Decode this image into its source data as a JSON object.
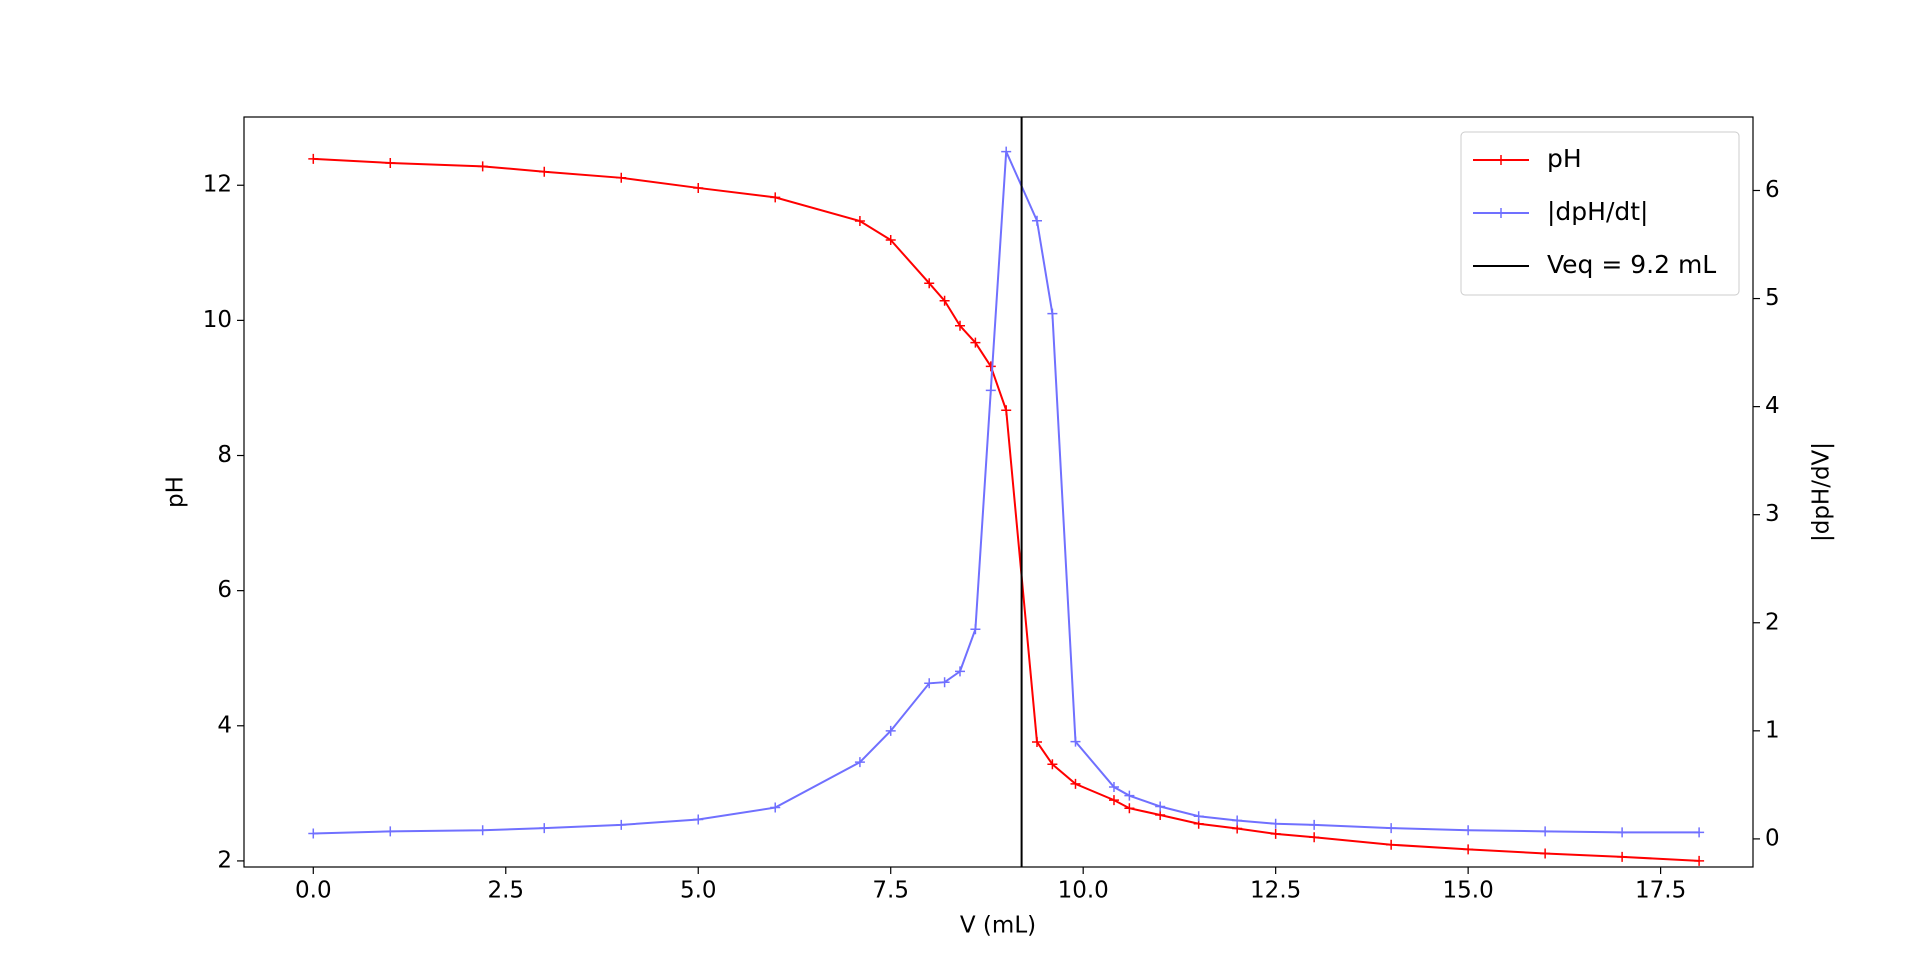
{
  "chart_data": {
    "type": "line",
    "x_label": "V (mL)",
    "y_label": "pH",
    "y2_label": "|dpH/dV|",
    "x": [
      0,
      1,
      2.2,
      3,
      4,
      5,
      6,
      7.1,
      7.5,
      8,
      8.2,
      8.4,
      8.6,
      8.8,
      9.0,
      9.4,
      9.6,
      9.9,
      10.4,
      10.6,
      11,
      11.5,
      12,
      12.5,
      13,
      14,
      15,
      16,
      17,
      18
    ],
    "series": [
      {
        "name": "pH",
        "color": "#ff0000",
        "axis": "y",
        "values": [
          12.39,
          12.33,
          12.28,
          12.2,
          12.11,
          11.96,
          11.82,
          11.47,
          11.19,
          10.55,
          10.29,
          9.92,
          9.67,
          9.32,
          8.67,
          3.76,
          3.43,
          3.14,
          2.9,
          2.78,
          2.68,
          2.55,
          2.48,
          2.4,
          2.35,
          2.24,
          2.17,
          2.11,
          2.06,
          2.0
        ]
      },
      {
        "name": "|dpH/dt|",
        "color": "#7070ff",
        "axis": "y2",
        "values": [
          0.05,
          0.07,
          0.08,
          0.1,
          0.13,
          0.18,
          0.29,
          0.71,
          1.0,
          1.44,
          1.45,
          1.55,
          1.94,
          4.15,
          6.36,
          5.72,
          4.86,
          0.9,
          0.48,
          0.4,
          0.3,
          0.21,
          0.17,
          0.14,
          0.13,
          0.1,
          0.08,
          0.07,
          0.06,
          0.06
        ]
      }
    ],
    "vline": {
      "x": 9.2,
      "label": "Veq = 9.2 mL",
      "color": "#000000"
    },
    "xlim": [
      -0.9,
      18.7
    ],
    "xticks": [
      {
        "value": 0,
        "label": "0.0"
      },
      {
        "value": 2.5,
        "label": "2.5"
      },
      {
        "value": 5,
        "label": "5.0"
      },
      {
        "value": 7.5,
        "label": "7.5"
      },
      {
        "value": 10,
        "label": "10.0"
      },
      {
        "value": 12.5,
        "label": "12.5"
      },
      {
        "value": 15,
        "label": "15.0"
      },
      {
        "value": 17.5,
        "label": "17.5"
      }
    ],
    "ylim": [
      1.91,
      13.01
    ],
    "yticks": [
      2,
      4,
      6,
      8,
      10,
      12
    ],
    "y2lim": [
      -0.26,
      6.68
    ],
    "y2ticks": [
      0,
      1,
      2,
      3,
      4,
      5,
      6
    ],
    "legend": "upper right",
    "grid": false
  }
}
